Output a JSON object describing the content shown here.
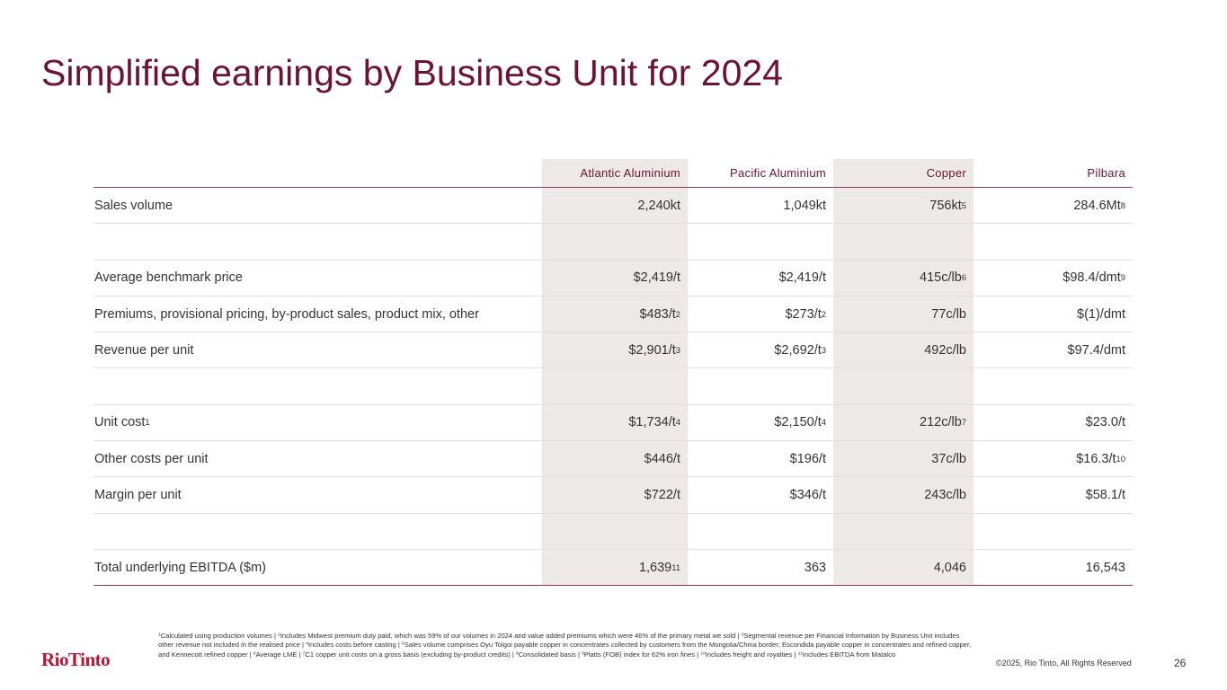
{
  "header": {
    "title": "Simplified earnings by Business Unit for 2024"
  },
  "table": {
    "columns": [
      "Atlantic Aluminium",
      "Pacific Aluminium",
      "Copper",
      "Pilbara"
    ],
    "groups": [
      [
        {
          "label": "Sales volume",
          "cells": [
            "2,240kt",
            "1,049kt",
            {
              "text": "756kt",
              "sup": "5"
            },
            {
              "text": "284.6Mt",
              "sup": "8"
            }
          ]
        }
      ],
      [
        {
          "label": "Average benchmark price",
          "cells": [
            "$2,419/t",
            "$2,419/t",
            {
              "text": "415c/lb",
              "sup": "6"
            },
            {
              "text": "$98.4/dmt",
              "sup": "9"
            }
          ]
        },
        {
          "label": "Premiums, provisional pricing, by-product sales, product mix, other",
          "cells": [
            {
              "text": "$483/t",
              "sup": "2"
            },
            {
              "text": "$273/t",
              "sup": "2"
            },
            "77c/lb",
            "$(1)/dmt"
          ]
        },
        {
          "label": "Revenue per unit",
          "cells": [
            {
              "text": "$2,901/t",
              "sup": "3"
            },
            {
              "text": "$2,692/t",
              "sup": "3"
            },
            "492c/lb",
            "$97.4/dmt"
          ]
        }
      ],
      [
        {
          "label": {
            "text": "Unit cost",
            "sup": "1"
          },
          "cells": [
            {
              "text": "$1,734/t",
              "sup": "4"
            },
            {
              "text": "$2,150/t",
              "sup": "4"
            },
            {
              "text": "212c/lb",
              "sup": "7"
            },
            "$23.0/t"
          ]
        },
        {
          "label": "Other costs per unit",
          "cells": [
            "$446/t",
            "$196/t",
            "37c/lb",
            {
              "text": "$16.3/t",
              "sup": "10"
            }
          ]
        },
        {
          "label": "Margin per unit",
          "cells": [
            "$722/t",
            "$346/t",
            "243c/lb",
            "$58.1/t"
          ]
        }
      ],
      [
        {
          "label": "Total underlying EBITDA ($m)",
          "cells": [
            {
              "text": "1,639",
              "sup": "11"
            },
            "363",
            "4,046",
            "16,543"
          ]
        }
      ]
    ]
  },
  "footnotes": [
    {
      "sup": "1",
      "text": "Calculated using production volumes | "
    },
    {
      "sup": "2",
      "text": "Includes Midwest premium duty paid, which was 59% of our volumes in 2024 and value added premiums which were 46% of the primary metal we sold | "
    },
    {
      "sup": "3",
      "text": "Segmental revenue per Financial Information by Business Unit includes other revenue not included in the realised price | "
    },
    {
      "sup": "4",
      "text": "Includes costs before casting | "
    },
    {
      "sup": "5",
      "text": "Sales volume comprises Oyu Tolgoi payable copper in concentrates collected by customers from the Mongolia/China border; Escondida payable copper in concentrates and refined copper, and Kennecott refined copper | "
    },
    {
      "sup": "6",
      "text": "Average LME | "
    },
    {
      "sup": "7",
      "text": "C1 copper unit costs on a gross basis (excluding by-product credits) | "
    },
    {
      "sup": "8",
      "text": "Consolidated basis | "
    },
    {
      "sup": "9",
      "text": "Platts (FOB) index for 62% iron fines | "
    },
    {
      "sup": "10",
      "text": "Includes freight and royalties | "
    },
    {
      "sup": "11",
      "text": "Includes EBITDA from Matalco"
    }
  ],
  "footer": {
    "logo": "RioTinto",
    "copyright": "©2025, Rio Tinto, All Rights Reserved",
    "page": "26"
  }
}
